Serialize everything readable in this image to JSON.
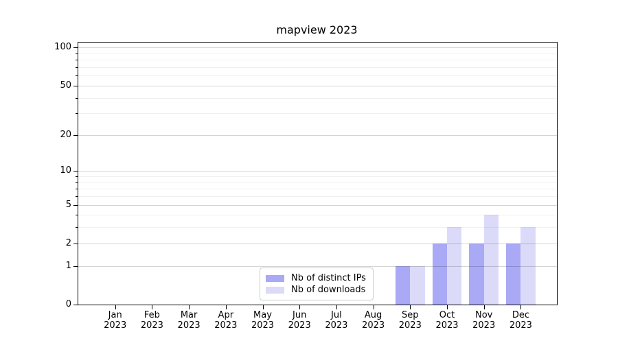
{
  "figure": {
    "title": "mapview 2023"
  },
  "chart_data": {
    "type": "bar",
    "title": "mapview 2023",
    "categories": [
      "Jan 2023",
      "Feb 2023",
      "Mar 2023",
      "Apr 2023",
      "May 2023",
      "Jun 2023",
      "Jul 2023",
      "Aug 2023",
      "Sep 2023",
      "Oct 2023",
      "Nov 2023",
      "Dec 2023"
    ],
    "series": [
      {
        "name": "Nb of distinct IPs",
        "color": "#a9a9f6",
        "values": [
          0,
          0,
          0,
          0,
          0,
          0,
          0,
          0,
          1,
          2,
          2,
          2
        ]
      },
      {
        "name": "Nb of downloads",
        "color": "#dbdbf9",
        "values": [
          0,
          0,
          0,
          0,
          0,
          0,
          0,
          0,
          1,
          3,
          4,
          3
        ]
      }
    ],
    "xlabel": "",
    "ylabel": "",
    "yscale": "log10(value+1)",
    "y_major_ticks": [
      0,
      1,
      2,
      5,
      10,
      20,
      50,
      100
    ],
    "y_minor_ticks": [
      3,
      4,
      6,
      7,
      8,
      9,
      30,
      40,
      60,
      70,
      80,
      90
    ],
    "ylim": [
      0,
      110
    ],
    "grid": "horizontal major and minor gridlines",
    "legend_position": "lower center"
  },
  "colors": {
    "bar_distinct_ips": "#a9a9f6",
    "bar_downloads": "#dbdbf9",
    "grid_major": "rgba(0,0,0,0.17)",
    "grid_minor": "rgba(0,0,0,0.06)",
    "axis": "#000000",
    "legend_border": "#cccccc"
  }
}
